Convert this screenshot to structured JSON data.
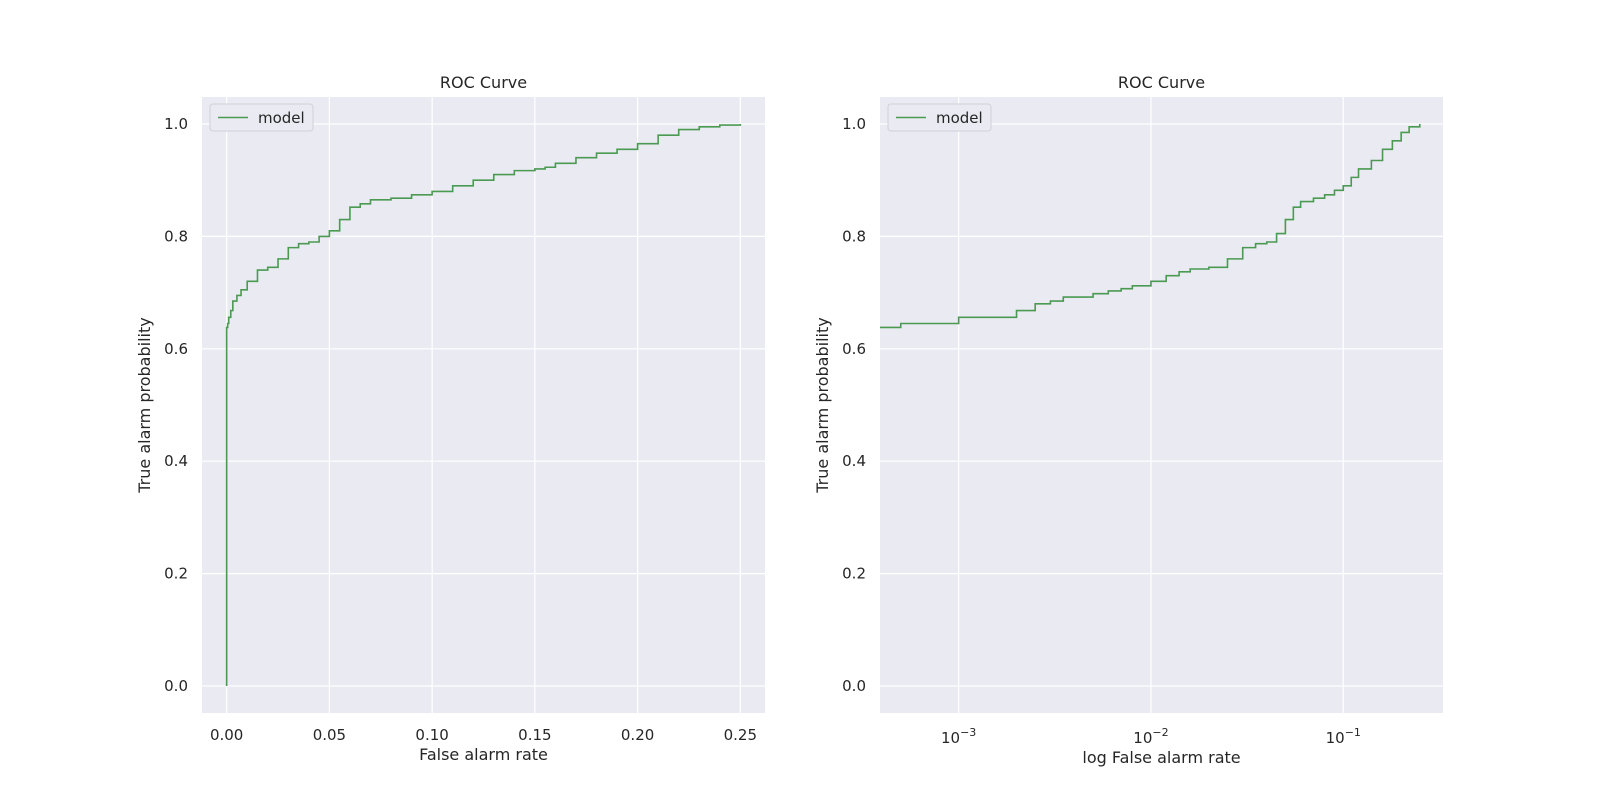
{
  "colors": {
    "plot_bg": "#eaeaf2",
    "grid": "#ffffff",
    "line": "#4a9a52",
    "text": "#262626"
  },
  "chart_data": [
    {
      "type": "line",
      "title": "ROC Curve",
      "xlabel": "False alarm rate",
      "ylabel": "True alarm probability",
      "xscale": "linear",
      "xlim": [
        -0.012,
        0.262
      ],
      "ylim": [
        -0.048,
        1.048
      ],
      "xticks": [
        0.0,
        0.05,
        0.1,
        0.15,
        0.2,
        0.25
      ],
      "xtick_labels": [
        "0.00",
        "0.05",
        "0.10",
        "0.15",
        "0.20",
        "0.25"
      ],
      "yticks": [
        0.0,
        0.2,
        0.4,
        0.6,
        0.8,
        1.0
      ],
      "ytick_labels": [
        "0.0",
        "0.2",
        "0.4",
        "0.6",
        "0.8",
        "1.0"
      ],
      "grid": true,
      "legend_position": "top-left",
      "series": [
        {
          "name": "model",
          "color": "#4a9a52",
          "x": [
            0.0,
            0.0,
            0.0005,
            0.001,
            0.002,
            0.003,
            0.005,
            0.007,
            0.01,
            0.015,
            0.02,
            0.025,
            0.03,
            0.035,
            0.04,
            0.045,
            0.05,
            0.055,
            0.06,
            0.065,
            0.07,
            0.08,
            0.09,
            0.1,
            0.11,
            0.12,
            0.13,
            0.14,
            0.15,
            0.155,
            0.16,
            0.17,
            0.18,
            0.19,
            0.2,
            0.21,
            0.22,
            0.23,
            0.24,
            0.25
          ],
          "y": [
            0.0,
            0.638,
            0.645,
            0.656,
            0.668,
            0.685,
            0.695,
            0.705,
            0.72,
            0.74,
            0.745,
            0.76,
            0.78,
            0.787,
            0.79,
            0.8,
            0.81,
            0.83,
            0.852,
            0.858,
            0.865,
            0.868,
            0.874,
            0.88,
            0.89,
            0.9,
            0.91,
            0.917,
            0.92,
            0.923,
            0.93,
            0.94,
            0.948,
            0.955,
            0.965,
            0.98,
            0.99,
            0.995,
            0.998,
            1.0
          ]
        }
      ]
    },
    {
      "type": "line",
      "title": "ROC Curve",
      "xlabel": "log False alarm rate",
      "ylabel": "True alarm probability",
      "xscale": "log",
      "xlim": [
        0.00039,
        0.33
      ],
      "ylim": [
        -0.048,
        1.048
      ],
      "xticks": [
        0.001,
        0.01,
        0.1
      ],
      "xtick_labels": [
        {
          "base": "10",
          "exp": "−3"
        },
        {
          "base": "10",
          "exp": "−2"
        },
        {
          "base": "10",
          "exp": "−1"
        }
      ],
      "yticks": [
        0.0,
        0.2,
        0.4,
        0.6,
        0.8,
        1.0
      ],
      "ytick_labels": [
        "0.0",
        "0.2",
        "0.4",
        "0.6",
        "0.8",
        "1.0"
      ],
      "grid": true,
      "legend_position": "top-left",
      "series": [
        {
          "name": "model",
          "color": "#4a9a52",
          "x": [
            0.00039,
            0.0005,
            0.001,
            0.002,
            0.0025,
            0.003,
            0.0035,
            0.005,
            0.006,
            0.007,
            0.008,
            0.01,
            0.012,
            0.014,
            0.016,
            0.02,
            0.025,
            0.03,
            0.035,
            0.04,
            0.045,
            0.05,
            0.055,
            0.06,
            0.07,
            0.08,
            0.09,
            0.1,
            0.11,
            0.12,
            0.14,
            0.16,
            0.18,
            0.2,
            0.22,
            0.25
          ],
          "y": [
            0.638,
            0.645,
            0.656,
            0.668,
            0.68,
            0.685,
            0.692,
            0.698,
            0.703,
            0.707,
            0.712,
            0.72,
            0.73,
            0.737,
            0.742,
            0.745,
            0.76,
            0.78,
            0.787,
            0.79,
            0.805,
            0.83,
            0.852,
            0.862,
            0.868,
            0.874,
            0.882,
            0.89,
            0.905,
            0.92,
            0.935,
            0.955,
            0.97,
            0.985,
            0.995,
            1.0
          ]
        }
      ]
    }
  ]
}
